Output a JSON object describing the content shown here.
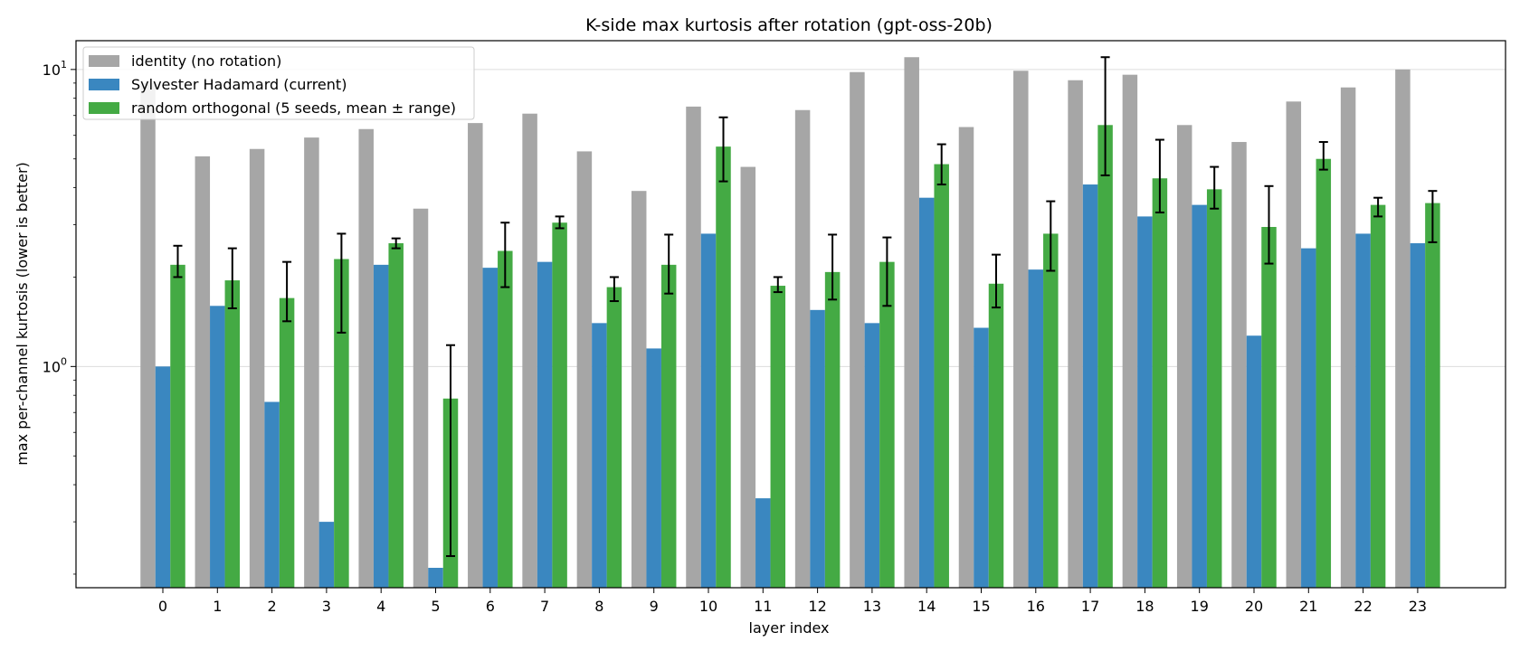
{
  "chart_data": {
    "type": "bar",
    "title": "K-side max kurtosis after rotation (gpt-oss-20b)",
    "xlabel": "layer index",
    "ylabel": "max per-channel kurtosis (lower is better)",
    "yscale": "log",
    "ylim": [
      0.18,
      12.5
    ],
    "grid": "y-major",
    "legend_position": "top-left",
    "categories": [
      "0",
      "1",
      "2",
      "3",
      "4",
      "5",
      "6",
      "7",
      "8",
      "9",
      "10",
      "11",
      "12",
      "13",
      "14",
      "15",
      "16",
      "17",
      "18",
      "19",
      "20",
      "21",
      "22",
      "23"
    ],
    "yticks": [
      {
        "value": 1,
        "base": "10",
        "exp": "0"
      },
      {
        "value": 10,
        "base": "10",
        "exp": "1"
      }
    ],
    "series": [
      {
        "name": "identity (no rotation)",
        "color": "#a6a6a6",
        "values": [
          9.0,
          5.1,
          5.4,
          5.9,
          6.3,
          3.4,
          6.6,
          7.1,
          5.3,
          3.9,
          7.5,
          4.7,
          7.3,
          9.8,
          11.0,
          6.4,
          9.9,
          9.2,
          9.6,
          6.5,
          5.7,
          7.8,
          8.7,
          10.0
        ]
      },
      {
        "name": "Sylvester Hadamard (current)",
        "color": "#3a87c0",
        "values": [
          1.0,
          1.6,
          0.76,
          0.3,
          2.2,
          0.21,
          2.15,
          2.25,
          1.4,
          1.15,
          2.8,
          0.36,
          1.55,
          1.4,
          3.7,
          1.35,
          2.12,
          4.1,
          3.2,
          3.5,
          1.27,
          2.5,
          2.8,
          2.6
        ]
      },
      {
        "name": "random orthogonal (5 seeds, mean ± range)",
        "color": "#44aa44",
        "values": [
          2.2,
          1.95,
          1.7,
          2.3,
          2.6,
          0.78,
          2.45,
          3.05,
          1.85,
          2.2,
          5.5,
          1.87,
          2.08,
          2.25,
          4.8,
          1.9,
          2.8,
          6.5,
          4.3,
          3.95,
          2.95,
          5.0,
          3.5,
          3.55
        ],
        "err_low": [
          2.0,
          1.57,
          1.42,
          1.3,
          2.5,
          0.23,
          1.85,
          2.92,
          1.66,
          1.76,
          4.2,
          1.78,
          1.68,
          1.6,
          4.1,
          1.58,
          2.1,
          4.4,
          3.3,
          3.4,
          2.22,
          4.6,
          3.2,
          2.62
        ],
        "err_high": [
          2.55,
          2.5,
          2.25,
          2.8,
          2.7,
          1.18,
          3.05,
          3.2,
          2.0,
          2.78,
          6.9,
          2.0,
          2.78,
          2.72,
          5.6,
          2.38,
          3.6,
          11.0,
          5.8,
          4.7,
          4.05,
          5.7,
          3.7,
          3.9
        ]
      }
    ]
  }
}
